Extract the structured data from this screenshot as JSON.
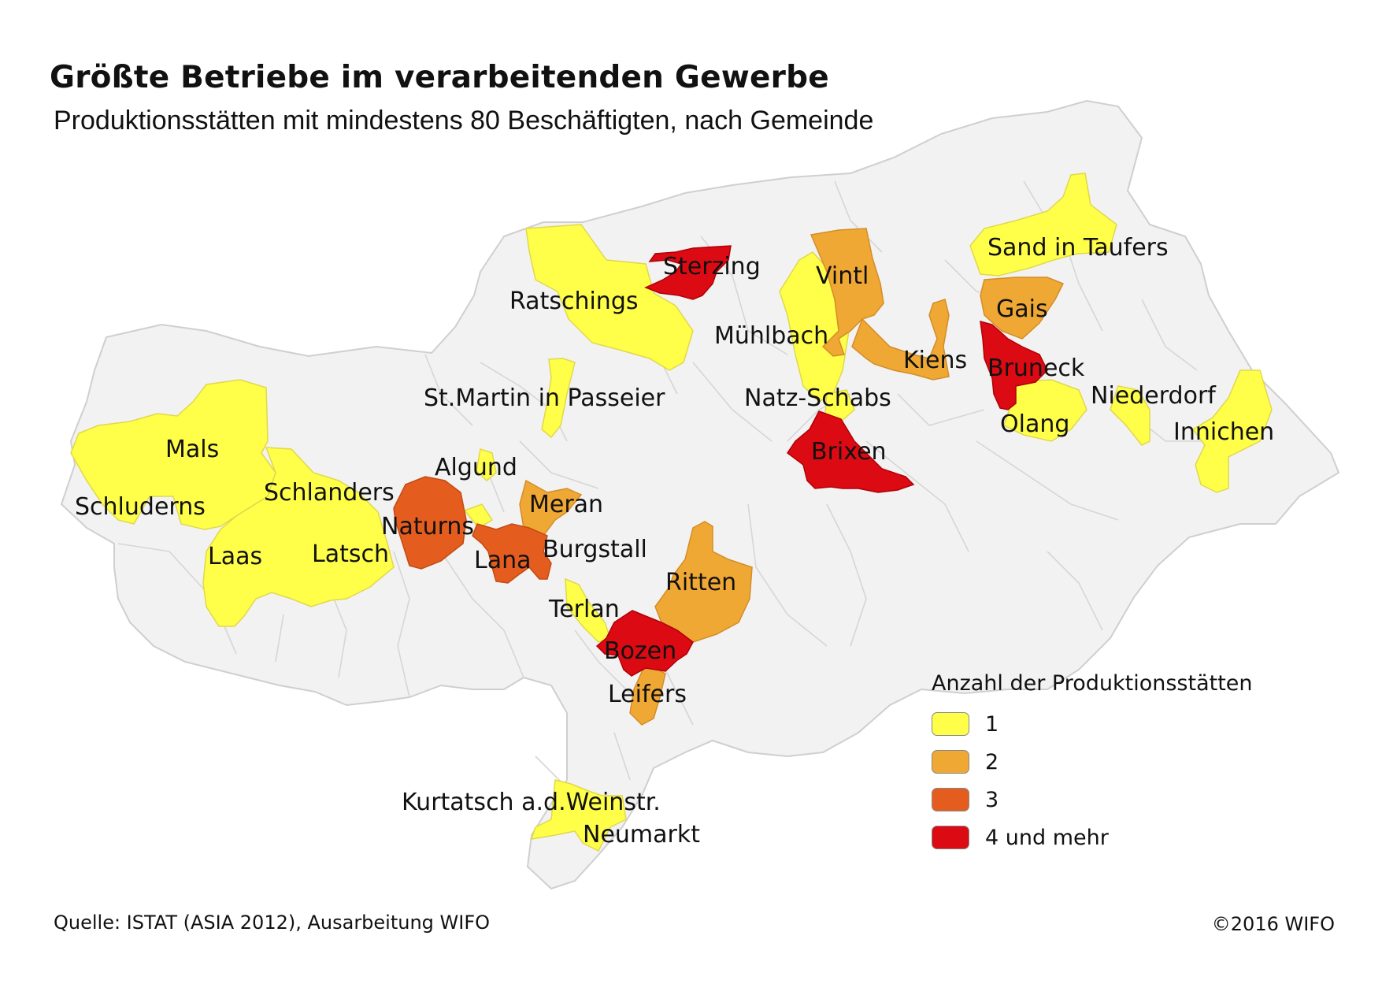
{
  "title": "Größte Betriebe im verarbeitenden Gewerbe",
  "subtitle": "Produktionsstätten mit mindestens 80 Beschäftigten, nach Gemeinde",
  "colors": {
    "1": "#ffff4a",
    "2": "#f0a834",
    "3": "#e45d1e",
    "4": "#dc0a12",
    "background": "#f2f2f2",
    "border": "#cfcfcf"
  },
  "legend": {
    "title": "Anzahl der Produktionsstätten",
    "items": [
      {
        "label": "1",
        "level": 1
      },
      {
        "label": "2",
        "level": 2
      },
      {
        "label": "3",
        "level": 3
      },
      {
        "label": "4  und mehr",
        "level": 4
      }
    ]
  },
  "municipalities": [
    {
      "name": "Sterzing",
      "level": 4
    },
    {
      "name": "Ratschings",
      "level": 1
    },
    {
      "name": "Vintl",
      "level": 2
    },
    {
      "name": "Mühlbach",
      "level": 1
    },
    {
      "name": "Kiens",
      "level": 2
    },
    {
      "name": "Sand in Taufers",
      "level": 1
    },
    {
      "name": "Gais",
      "level": 2
    },
    {
      "name": "Bruneck",
      "level": 4
    },
    {
      "name": "Niederdorf",
      "level": 1
    },
    {
      "name": "Olang",
      "level": 1
    },
    {
      "name": "Innichen",
      "level": 1
    },
    {
      "name": "St.Martin in Passeier",
      "level": 1
    },
    {
      "name": "Natz-Schabs",
      "level": 1
    },
    {
      "name": "Brixen",
      "level": 4
    },
    {
      "name": "Mals",
      "level": 1
    },
    {
      "name": "Schluderns",
      "level": 1
    },
    {
      "name": "Schlanders",
      "level": 1
    },
    {
      "name": "Laas",
      "level": 1
    },
    {
      "name": "Latsch",
      "level": 1
    },
    {
      "name": "Algund",
      "level": 1
    },
    {
      "name": "Naturns",
      "level": 3
    },
    {
      "name": "Meran",
      "level": 2
    },
    {
      "name": "Lana",
      "level": 3
    },
    {
      "name": "Burgstall",
      "level": 1
    },
    {
      "name": "Ritten",
      "level": 2
    },
    {
      "name": "Terlan",
      "level": 1
    },
    {
      "name": "Bozen",
      "level": 4
    },
    {
      "name": "Leifers",
      "level": 2
    },
    {
      "name": "Kurtatsch a.d.Weinstr.",
      "level": 1
    },
    {
      "name": "Neumarkt",
      "level": 1
    }
  ],
  "source": "Quelle: ISTAT (ASIA 2012), Ausarbeitung WIFO",
  "copyright": "©2016 WIFO"
}
